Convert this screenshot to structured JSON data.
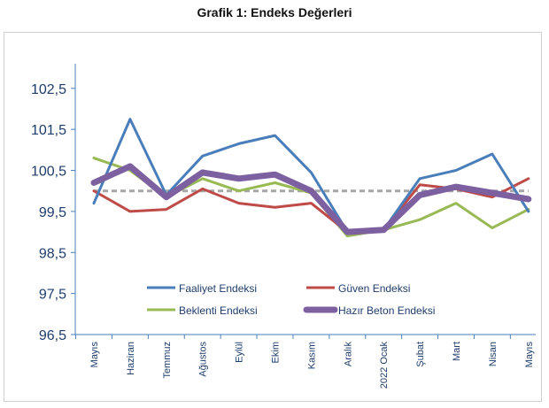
{
  "chart_data": {
    "type": "line",
    "title": "Grafik 1: Endeks Değerleri",
    "xlabel": "",
    "ylabel": "",
    "categories": [
      "Mayıs",
      "Haziran",
      "Temmuz",
      "Ağustos",
      "Eylül",
      "Ekim",
      "Kasım",
      "Aralık",
      "2022 Ocak",
      "Şubat",
      "Mart",
      "Nisan",
      "Mayıs"
    ],
    "y_ticks": [
      "96,5",
      "97,5",
      "98,5",
      "99,5",
      "100,5",
      "101,5",
      "102,5"
    ],
    "ylim": [
      96.5,
      103.1
    ],
    "grid": false,
    "legend_position": "bottom-center inside",
    "reference_line": {
      "value": 100,
      "style": "dashed",
      "color": "#a6a6a6"
    },
    "series": [
      {
        "name": "Faaliyet Endeksi",
        "color": "#4a7ebb",
        "values": [
          99.7,
          101.75,
          99.9,
          100.85,
          101.15,
          101.35,
          100.45,
          99.0,
          99.05,
          100.3,
          100.5,
          100.9,
          99.5
        ]
      },
      {
        "name": "Güven Endeksi",
        "color": "#be4b48",
        "values": [
          100.0,
          99.5,
          99.55,
          100.05,
          99.7,
          99.6,
          99.7,
          99.0,
          99.05,
          100.15,
          100.05,
          99.85,
          100.3
        ]
      },
      {
        "name": "Beklenti Endeksi",
        "color": "#98b954",
        "values": [
          100.8,
          100.5,
          99.85,
          100.3,
          100.0,
          100.2,
          99.95,
          98.9,
          99.05,
          99.3,
          99.7,
          99.1,
          99.55
        ]
      },
      {
        "name": "Hazır Beton Endeksi",
        "color": "#7d60a0",
        "values": [
          100.2,
          100.6,
          99.85,
          100.45,
          100.3,
          100.4,
          100.0,
          99.0,
          99.05,
          99.9,
          100.1,
          99.95,
          99.8
        ]
      }
    ]
  }
}
